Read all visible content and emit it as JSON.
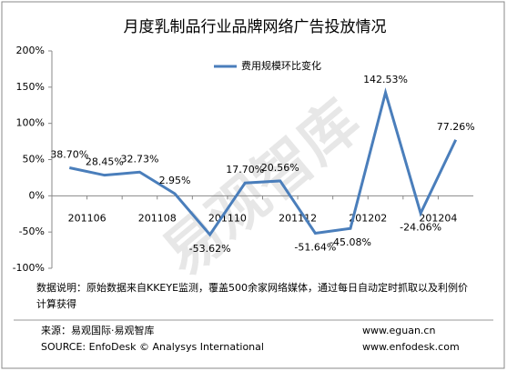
{
  "chart_data": {
    "type": "line",
    "title": "月度乳制品行业品牌网络广告投放情况",
    "categories": [
      "201106",
      null,
      "201108",
      null,
      "201110",
      null,
      "201112",
      null,
      "201202",
      null,
      "201204",
      null
    ],
    "series": [
      {
        "name": "费用规模环比变化",
        "color": "#4a7ebb",
        "values": [
          38.7,
          28.45,
          32.73,
          2.95,
          -53.62,
          17.7,
          20.56,
          -51.64,
          -45.08,
          142.53,
          -24.06,
          77.26
        ],
        "value_labels": [
          "38.70%",
          "28.45%",
          "32.73%",
          "2.95%",
          "-53.62%",
          "17.70%",
          "20.56%",
          "-51.64%",
          "-45.08%",
          "142.53%",
          "-24.06%",
          "77.26%"
        ]
      }
    ],
    "ylim": [
      -100,
      200
    ],
    "yticks": [
      {
        "value": -100,
        "label": "-100%"
      },
      {
        "value": -50,
        "label": "-50%"
      },
      {
        "value": 0,
        "label": "0%"
      },
      {
        "value": 50,
        "label": "50%"
      },
      {
        "value": 100,
        "label": "100%"
      },
      {
        "value": 150,
        "label": "150%"
      },
      {
        "value": 200,
        "label": "200%"
      }
    ],
    "grid": false,
    "legend": "top",
    "watermark": "易观智库",
    "note": "数据说明：原始数据来自KKEYE监测，覆盖500余家网络媒体，通过每日自动定时抓取以及利例价计算获得",
    "source_cn": "来源：易观国际·易观智库",
    "source_en": "SOURCE: EnfoDesk © Analysys International",
    "url1": "www.eguan.cn",
    "url2": "www.enfodesk.com"
  }
}
